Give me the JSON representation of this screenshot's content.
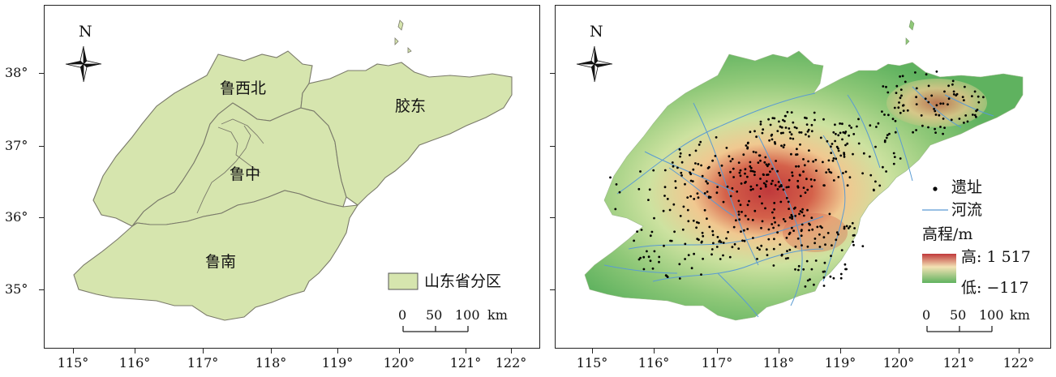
{
  "left_map": {
    "regions": {
      "northwest": "鲁西北",
      "east": "胶东",
      "central": "鲁中",
      "south": "鲁南"
    },
    "legend_label": "山东省分区",
    "compass_label": "N",
    "scale": {
      "tick0": "0",
      "tick1": "50",
      "tick2": "100",
      "unit": "km"
    }
  },
  "right_map": {
    "compass_label": "N",
    "legend": {
      "site_label": "遗址",
      "river_label": "河流",
      "elevation_title": "高程/m",
      "high_label": "高: 1 517",
      "low_label": "低: −117"
    },
    "scale": {
      "tick0": "0",
      "tick1": "50",
      "tick2": "100",
      "unit": "km"
    }
  },
  "axes": {
    "latitudes": [
      "38°",
      "37°",
      "36°",
      "35°"
    ],
    "longitudes": [
      "115°",
      "116°",
      "117°",
      "118°",
      "119°",
      "120°",
      "121°",
      "122°"
    ]
  },
  "colors": {
    "region_fill": "#d6e5ae",
    "region_stroke": "#7a7a6a",
    "river": "#5a9bd3",
    "site": "#000000",
    "elev_high": "#c0393b",
    "elev_mid": "#f0c890",
    "elev_low": "#5fb25f"
  }
}
